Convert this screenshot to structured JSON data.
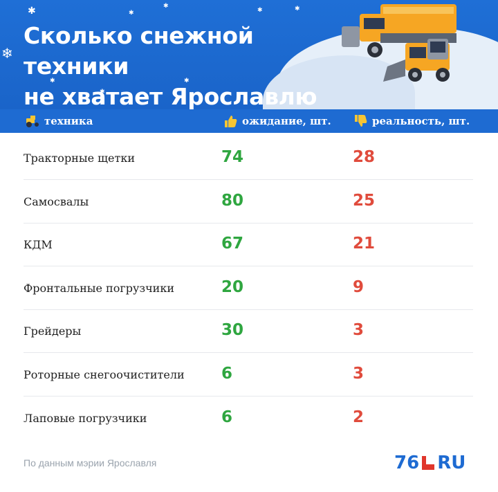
{
  "title_lines": [
    "Сколько снежной техники",
    "не хватает Ярославлю"
  ],
  "colors": {
    "header_blue": "#1f6fd6",
    "expected_green": "#2fa640",
    "reality_red": "#e04b3c"
  },
  "table": {
    "headers": {
      "vehicle": "техника",
      "expected": "ожидание, шт.",
      "reality": "реальность, шт."
    },
    "header_icons": [
      "tractor-icon",
      "thumbs-up-icon",
      "thumbs-down-icon"
    ]
  },
  "chart_data": {
    "type": "table",
    "columns": [
      "техника",
      "ожидание, шт.",
      "реальность, шт."
    ],
    "rows": [
      {
        "name": "Тракторные щетки",
        "expected": 74,
        "reality": 28
      },
      {
        "name": "Самосвалы",
        "expected": 80,
        "reality": 25
      },
      {
        "name": "КДМ",
        "expected": 67,
        "reality": 21
      },
      {
        "name": "Фронтальные погрузчики",
        "expected": 20,
        "reality": 9
      },
      {
        "name": "Грейдеры",
        "expected": 30,
        "reality": 3
      },
      {
        "name": "Роторные снегоочистители",
        "expected": 6,
        "reality": 3
      },
      {
        "name": "Лаповые погрузчики",
        "expected": 6,
        "reality": 2
      }
    ]
  },
  "source": "По данным мэрии Ярославля",
  "logo": {
    "number": "76",
    "suffix": "RU"
  }
}
